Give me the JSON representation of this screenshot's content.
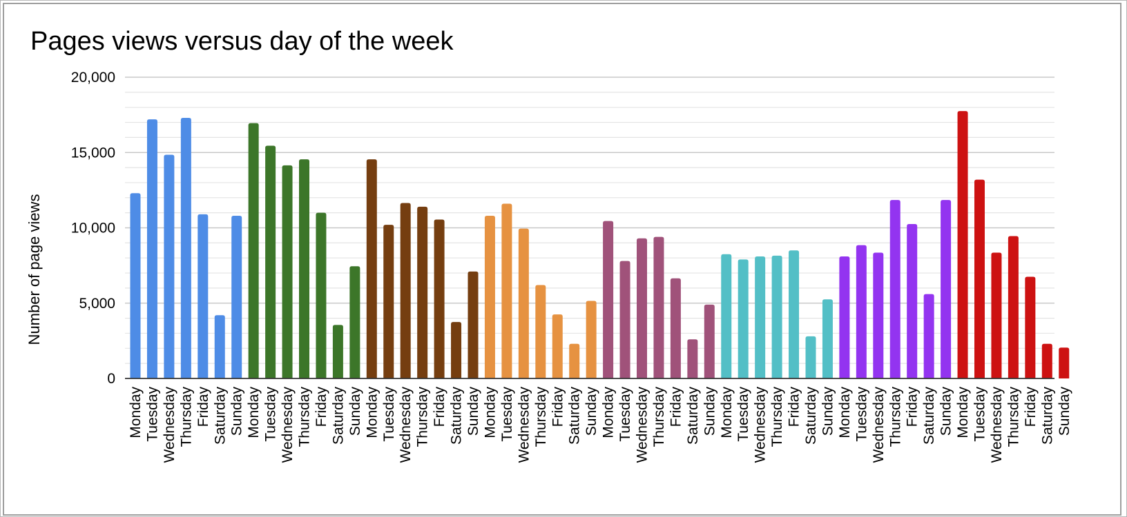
{
  "chart_data": {
    "type": "bar",
    "title": "Pages views versus day of the week",
    "xlabel": "",
    "ylabel": "Number of page views",
    "ylim": [
      0,
      20000
    ],
    "yticks": [
      0,
      5000,
      10000,
      15000,
      20000
    ],
    "ytick_labels": [
      "0",
      "5,000",
      "10,000",
      "15,000",
      "20,000"
    ],
    "minor_grid_step": 1000,
    "grid": true,
    "legend": "none",
    "groups": [
      {
        "color": "#4e8ce6",
        "categories": [
          "Monday",
          "Tuesday",
          "Wednesday",
          "Thursday",
          "Friday",
          "Saturday",
          "Sunday"
        ],
        "values": [
          12300,
          17200,
          14850,
          17300,
          10900,
          4200,
          10800
        ]
      },
      {
        "color": "#3c7629",
        "categories": [
          "Monday",
          "Tuesday",
          "Wednesday",
          "Thursday",
          "Friday",
          "Saturday",
          "Sunday"
        ],
        "values": [
          16950,
          15450,
          14150,
          14550,
          11000,
          3550,
          7450
        ]
      },
      {
        "color": "#753e10",
        "categories": [
          "Monday",
          "Tuesday",
          "Wednesday",
          "Thursday",
          "Friday",
          "Saturday",
          "Sunday"
        ],
        "values": [
          14550,
          10200,
          11650,
          11400,
          10550,
          3750,
          7100
        ]
      },
      {
        "color": "#e69241",
        "categories": [
          "Monday",
          "Tuesday",
          "Wednesday",
          "Thursday",
          "Friday",
          "Saturday",
          "Sunday"
        ],
        "values": [
          10800,
          11600,
          9950,
          6200,
          4250,
          2300,
          5150
        ]
      },
      {
        "color": "#a0527a",
        "categories": [
          "Monday",
          "Tuesday",
          "Wednesday",
          "Thursday",
          "Friday",
          "Saturday",
          "Sunday"
        ],
        "values": [
          10450,
          7800,
          9300,
          9400,
          6650,
          2600,
          4900
        ]
      },
      {
        "color": "#53bfc6",
        "categories": [
          "Monday",
          "Tuesday",
          "Wednesday",
          "Thursday",
          "Friday",
          "Saturday",
          "Sunday"
        ],
        "values": [
          8250,
          7900,
          8100,
          8150,
          8500,
          2800,
          5250
        ]
      },
      {
        "color": "#9334f0",
        "categories": [
          "Monday",
          "Tuesday",
          "Wednesday",
          "Thursday",
          "Friday",
          "Saturday",
          "Sunday"
        ],
        "values": [
          8100,
          8850,
          8350,
          11850,
          10250,
          5600,
          11850
        ]
      },
      {
        "color": "#cd1212",
        "categories": [
          "Monday",
          "Tuesday",
          "Wednesday",
          "Thursday",
          "Friday",
          "Saturday",
          "Sunday"
        ],
        "values": [
          17750,
          13200,
          8350,
          9450,
          6750,
          2300,
          2050
        ]
      }
    ]
  }
}
